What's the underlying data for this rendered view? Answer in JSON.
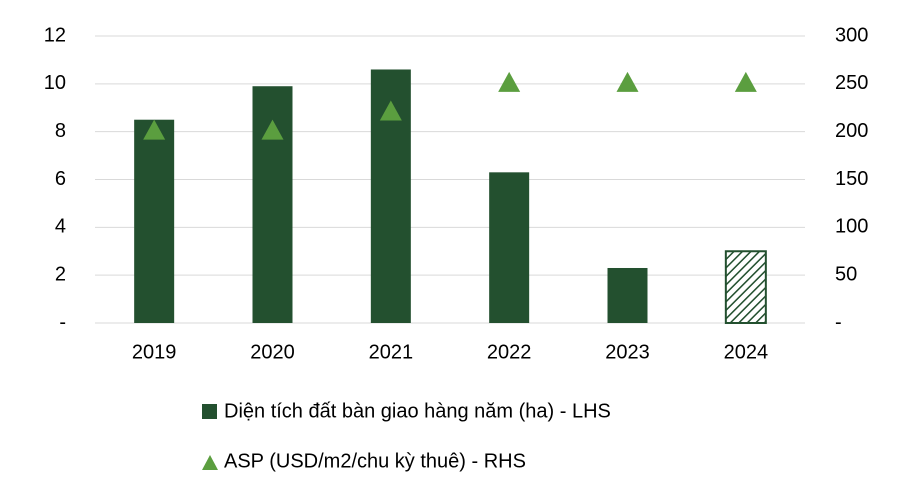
{
  "chart_data": {
    "type": "bar",
    "categories": [
      "2019",
      "2020",
      "2021",
      "2022",
      "2023",
      "2024"
    ],
    "series": [
      {
        "name": "Diện tích đất bàn giao hàng năm (ha) - LHS",
        "color": "#23502f",
        "values": [
          8.5,
          9.9,
          10.6,
          6.3,
          2.3,
          3.0
        ],
        "hatch": [
          false,
          false,
          false,
          false,
          false,
          true
        ]
      },
      {
        "name": "ASP (USD/m2/chu kỳ thuê) - RHS",
        "color": "#5b9e3f",
        "axis": "y2",
        "marker": "triangle",
        "values": [
          200,
          200,
          220,
          250,
          250,
          250
        ]
      }
    ],
    "ylim": [
      0,
      12
    ],
    "yticks": [
      {
        "value": 0,
        "label": "-"
      },
      2,
      4,
      6,
      8,
      10,
      12
    ],
    "y2lim": [
      0,
      300
    ],
    "y2ticks": [
      {
        "value": 0,
        "label": "-"
      },
      50,
      100,
      150,
      200,
      250,
      300
    ],
    "grid": true
  }
}
